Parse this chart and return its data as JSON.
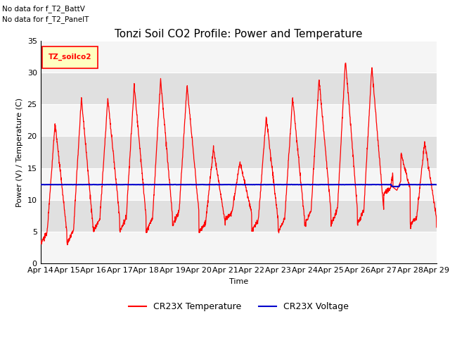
{
  "title": "Tonzi Soil CO2 Profile: Power and Temperature",
  "xlabel": "Time",
  "ylabel": "Power (V) / Temperature (C)",
  "ylim": [
    0,
    35
  ],
  "yticks": [
    0,
    5,
    10,
    15,
    20,
    25,
    30,
    35
  ],
  "x_labels": [
    "Apr 14",
    "Apr 15",
    "Apr 16",
    "Apr 17",
    "Apr 18",
    "Apr 19",
    "Apr 20",
    "Apr 21",
    "Apr 22",
    "Apr 23",
    "Apr 24",
    "Apr 25",
    "Apr 26",
    "Apr 27",
    "Apr 28",
    "Apr 29"
  ],
  "no_data_text1": "No data for f_T2_BattV",
  "no_data_text2": "No data for f_T2_PanelT",
  "legend_label1": "TZ_soilco2",
  "legend_label2": "CR23X Temperature",
  "legend_label3": "CR23X Voltage",
  "temp_color": "#ff0000",
  "voltage_color": "#0000cc",
  "voltage_value": 12.4,
  "background_color": "#ffffff",
  "plot_bg_color": "#f0f0f0",
  "band_light": "#f5f5f5",
  "band_dark": "#e0e0e0",
  "title_fontsize": 11,
  "axis_fontsize": 8,
  "tick_fontsize": 8
}
